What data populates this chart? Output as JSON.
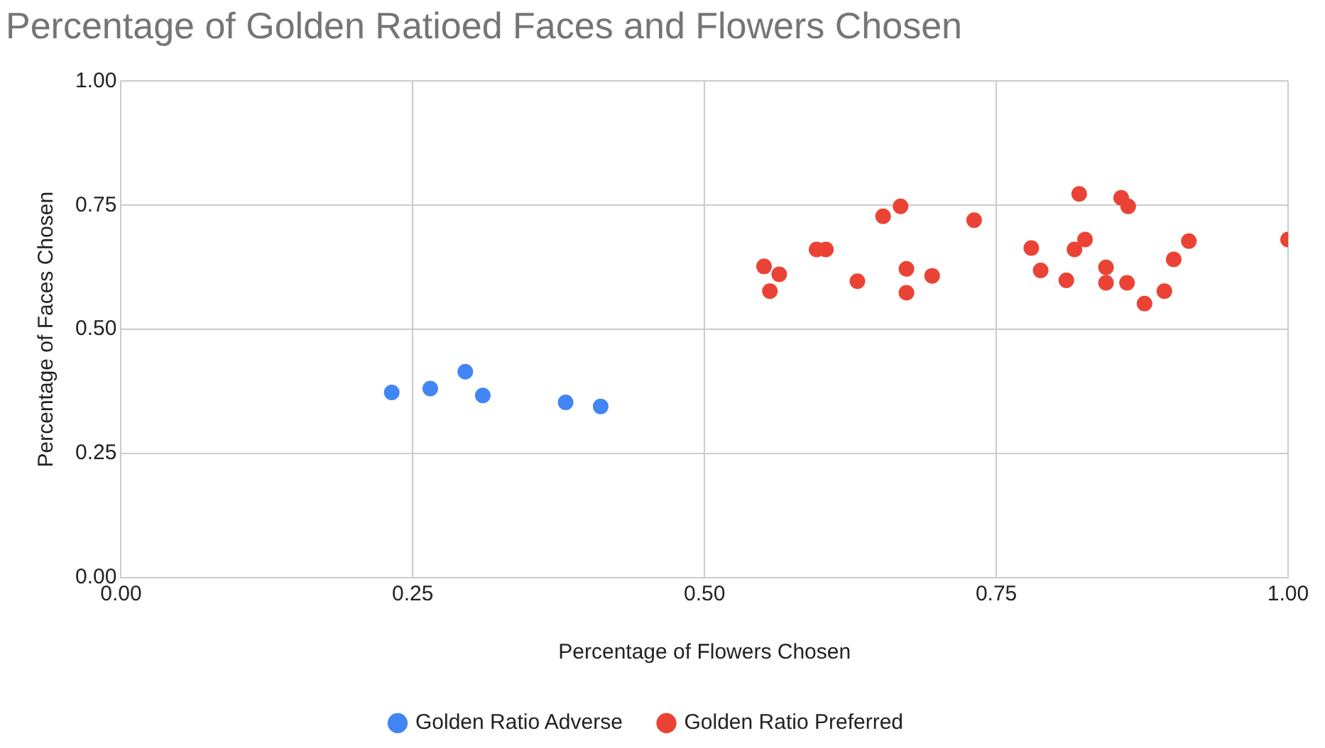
{
  "chart_data": {
    "type": "scatter",
    "title": "Percentage of Golden Ratioed Faces and Flowers Chosen",
    "xlabel": "Percentage of Flowers Chosen",
    "ylabel": "Percentage of Faces Chosen",
    "xlim": [
      0,
      1
    ],
    "ylim": [
      0,
      1
    ],
    "xticks": [
      {
        "value": 0,
        "label": "0.00"
      },
      {
        "value": 0.25,
        "label": "0.25"
      },
      {
        "value": 0.5,
        "label": "0.50"
      },
      {
        "value": 0.75,
        "label": "0.75"
      },
      {
        "value": 1,
        "label": "1.00"
      }
    ],
    "yticks": [
      {
        "value": 0,
        "label": "0.00"
      },
      {
        "value": 0.25,
        "label": "0.25"
      },
      {
        "value": 0.5,
        "label": "0.50"
      },
      {
        "value": 0.75,
        "label": "0.75"
      },
      {
        "value": 1,
        "label": "1.00"
      }
    ],
    "grid": true,
    "legend": "bottom",
    "marker": "circle",
    "series": [
      {
        "name": "Golden Ratio Adverse",
        "color": "#4285f4",
        "x": [
          0.232,
          0.265,
          0.295,
          0.31,
          0.381,
          0.411
        ],
        "values": [
          0.373,
          0.381,
          0.415,
          0.367,
          0.353,
          0.345
        ]
      },
      {
        "name": "Golden Ratio Preferred",
        "color": "#ea4335",
        "x": [
          0.551,
          0.556,
          0.564,
          0.596,
          0.604,
          0.631,
          0.653,
          0.668,
          0.673,
          0.673,
          0.695,
          0.731,
          0.78,
          0.788,
          0.81,
          0.817,
          0.821,
          0.826,
          0.844,
          0.844,
          0.857,
          0.862,
          0.863,
          0.877,
          0.894,
          0.902,
          0.915,
          1.0
        ],
        "values": [
          0.627,
          0.577,
          0.611,
          0.661,
          0.661,
          0.597,
          0.728,
          0.748,
          0.622,
          0.574,
          0.608,
          0.72,
          0.664,
          0.619,
          0.599,
          0.661,
          0.773,
          0.681,
          0.625,
          0.594,
          0.765,
          0.594,
          0.748,
          0.552,
          0.577,
          0.641,
          0.678,
          0.681
        ]
      }
    ]
  }
}
